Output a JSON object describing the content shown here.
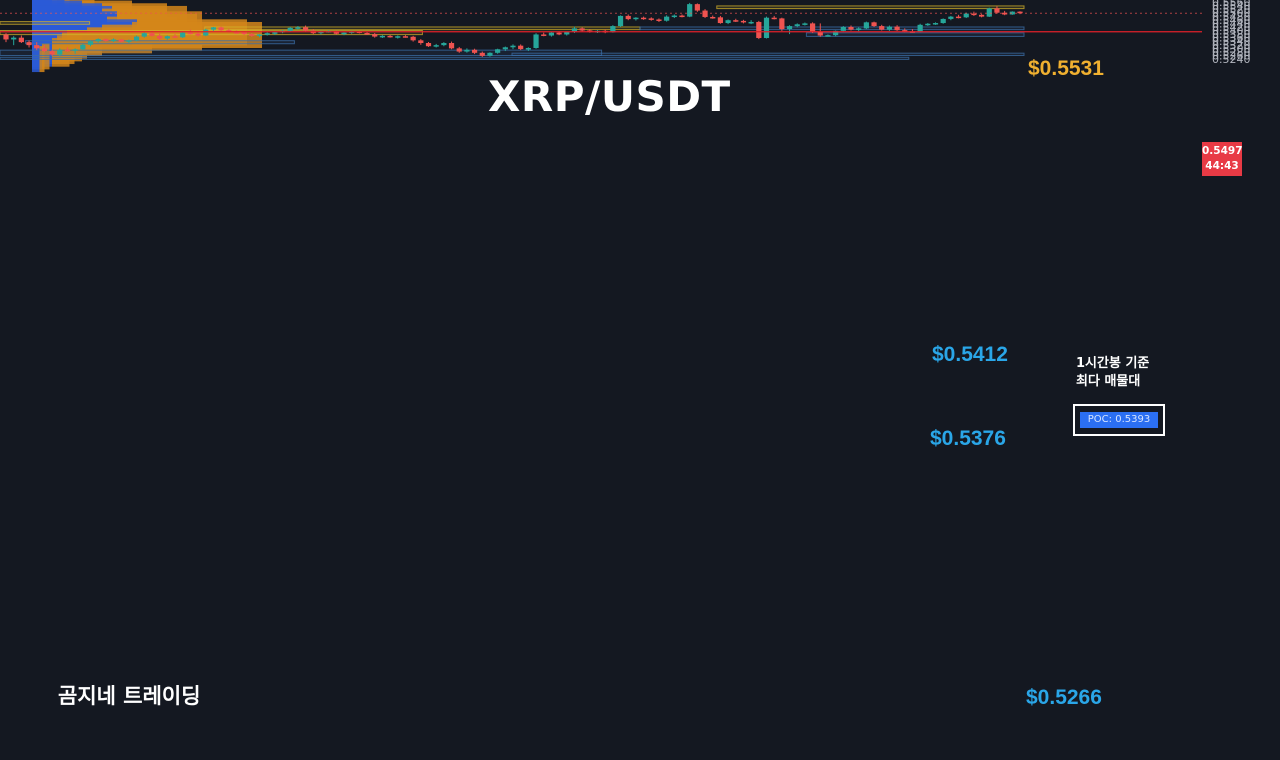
{
  "header": {
    "title": "XRP/USDT"
  },
  "branding": {
    "watermark": "곰지네 트레이딩"
  },
  "annotations": {
    "resistance_label": "$0.5531",
    "mid_label": "$0.5412",
    "support_label": "$0.5376",
    "low_label": "$0.5266",
    "poc_note_line1": "1시간봉 기준",
    "poc_note_line2": "최다 매물대",
    "poc_text": "POC: 0.5393"
  },
  "price_tag": {
    "price": "0.5497",
    "countdown": "44:43"
  },
  "colors": {
    "background": "#141821",
    "up_candle": "#26a69a",
    "down_candle": "#ef5350",
    "volume_profile_blue": "#2a5bd7",
    "volume_profile_orange": "#d4861a",
    "resistance_zone": "#d4b22a",
    "support_zone": "#3b6fa8",
    "poc_line": "#e0202a",
    "label_blue": "#2aa6e8",
    "label_orange": "#f0b030"
  },
  "chart_data": {
    "type": "candlestick",
    "symbol": "XRP/USDT",
    "timeframe": "1h",
    "ylim": [
      0.524,
      0.556
    ],
    "y_ticks": [
      "0.5560",
      "0.5540",
      "0.5520",
      "0.5500",
      "0.5480",
      "0.5460",
      "0.5440",
      "0.5420",
      "0.5400",
      "0.5380",
      "0.5360",
      "0.5340",
      "0.5320",
      "0.5300",
      "0.5280",
      "0.5260",
      "0.5240"
    ],
    "last_price": 0.5497,
    "poc": 0.5393,
    "candles_ohlc": [
      [
        0.5378,
        0.5385,
        0.5335,
        0.535
      ],
      [
        0.535,
        0.5368,
        0.5318,
        0.536
      ],
      [
        0.536,
        0.5372,
        0.533,
        0.5335
      ],
      [
        0.5335,
        0.5345,
        0.5305,
        0.5318
      ],
      [
        0.5318,
        0.5335,
        0.529,
        0.53
      ],
      [
        0.53,
        0.532,
        0.5278,
        0.5285
      ],
      [
        0.5285,
        0.5292,
        0.5258,
        0.5265
      ],
      [
        0.5265,
        0.53,
        0.5255,
        0.5292
      ],
      [
        0.5292,
        0.5306,
        0.528,
        0.5287
      ],
      [
        0.5287,
        0.53,
        0.527,
        0.5295
      ],
      [
        0.5295,
        0.5325,
        0.529,
        0.532
      ],
      [
        0.532,
        0.5345,
        0.5312,
        0.534
      ],
      [
        0.534,
        0.5356,
        0.5332,
        0.5352
      ],
      [
        0.5352,
        0.5356,
        0.5338,
        0.5342
      ],
      [
        0.5342,
        0.5356,
        0.5336,
        0.535
      ],
      [
        0.535,
        0.5352,
        0.5333,
        0.5337
      ],
      [
        0.5337,
        0.5349,
        0.533,
        0.5345
      ],
      [
        0.5345,
        0.5372,
        0.534,
        0.5366
      ],
      [
        0.5366,
        0.539,
        0.536,
        0.5385
      ],
      [
        0.5385,
        0.5398,
        0.5366,
        0.537
      ],
      [
        0.537,
        0.5384,
        0.5345,
        0.5355
      ],
      [
        0.5355,
        0.5372,
        0.5348,
        0.5368
      ],
      [
        0.5368,
        0.538,
        0.5358,
        0.5362
      ],
      [
        0.5362,
        0.5392,
        0.5358,
        0.5388
      ],
      [
        0.5388,
        0.5405,
        0.5378,
        0.5382
      ],
      [
        0.5382,
        0.5398,
        0.5365,
        0.5372
      ],
      [
        0.5372,
        0.541,
        0.5368,
        0.5405
      ],
      [
        0.5405,
        0.542,
        0.5398,
        0.5418
      ],
      [
        0.5418,
        0.5422,
        0.5398,
        0.5402
      ],
      [
        0.5402,
        0.5408,
        0.5388,
        0.5392
      ],
      [
        0.5392,
        0.54,
        0.5382,
        0.539
      ],
      [
        0.539,
        0.5396,
        0.5375,
        0.538
      ],
      [
        0.538,
        0.5386,
        0.5365,
        0.537
      ],
      [
        0.537,
        0.538,
        0.5362,
        0.5378
      ],
      [
        0.5378,
        0.539,
        0.5372,
        0.5385
      ],
      [
        0.5385,
        0.5395,
        0.5375,
        0.539
      ],
      [
        0.539,
        0.5402,
        0.5385,
        0.5398
      ],
      [
        0.5398,
        0.542,
        0.5392,
        0.5415
      ],
      [
        0.5415,
        0.5425,
        0.5405,
        0.5418
      ],
      [
        0.5418,
        0.5428,
        0.5395,
        0.54
      ],
      [
        0.54,
        0.5408,
        0.538,
        0.5385
      ],
      [
        0.5385,
        0.5398,
        0.5378,
        0.5395
      ],
      [
        0.5395,
        0.5402,
        0.5388,
        0.5397
      ],
      [
        0.5397,
        0.54,
        0.5378,
        0.5382
      ],
      [
        0.5382,
        0.539,
        0.5374,
        0.5388
      ],
      [
        0.5388,
        0.5398,
        0.5382,
        0.5395
      ],
      [
        0.5395,
        0.5398,
        0.5384,
        0.5386
      ],
      [
        0.5386,
        0.5392,
        0.5375,
        0.538
      ],
      [
        0.538,
        0.5386,
        0.536,
        0.5366
      ],
      [
        0.5366,
        0.5374,
        0.5358,
        0.537
      ],
      [
        0.537,
        0.5375,
        0.536,
        0.5364
      ],
      [
        0.5364,
        0.5372,
        0.5355,
        0.5368
      ],
      [
        0.5368,
        0.5374,
        0.536,
        0.5365
      ],
      [
        0.5365,
        0.537,
        0.5338,
        0.5345
      ],
      [
        0.5345,
        0.5352,
        0.532,
        0.533
      ],
      [
        0.533,
        0.5336,
        0.5308,
        0.5312
      ],
      [
        0.5312,
        0.5325,
        0.5305,
        0.5318
      ],
      [
        0.5318,
        0.5335,
        0.5312,
        0.533
      ],
      [
        0.533,
        0.5338,
        0.5295,
        0.53
      ],
      [
        0.53,
        0.5308,
        0.5275,
        0.5282
      ],
      [
        0.5282,
        0.53,
        0.5276,
        0.5292
      ],
      [
        0.5292,
        0.5298,
        0.5268,
        0.5275
      ],
      [
        0.5275,
        0.5282,
        0.5252,
        0.5258
      ],
      [
        0.5258,
        0.5278,
        0.5254,
        0.5275
      ],
      [
        0.5275,
        0.5298,
        0.527,
        0.5295
      ],
      [
        0.5295,
        0.531,
        0.5285,
        0.5306
      ],
      [
        0.5306,
        0.5322,
        0.5296,
        0.5315
      ],
      [
        0.5315,
        0.5322,
        0.529,
        0.5296
      ],
      [
        0.5296,
        0.5306,
        0.5285,
        0.5302
      ],
      [
        0.5302,
        0.5385,
        0.5298,
        0.5378
      ],
      [
        0.5378,
        0.5388,
        0.5368,
        0.5372
      ],
      [
        0.5372,
        0.5392,
        0.5366,
        0.5388
      ],
      [
        0.5388,
        0.5396,
        0.5374,
        0.5378
      ],
      [
        0.5378,
        0.5395,
        0.5372,
        0.5392
      ],
      [
        0.5392,
        0.5422,
        0.5386,
        0.5412
      ],
      [
        0.5412,
        0.5418,
        0.5395,
        0.54
      ],
      [
        0.54,
        0.5408,
        0.5388,
        0.5394
      ],
      [
        0.5394,
        0.5402,
        0.5386,
        0.5398
      ],
      [
        0.5398,
        0.5406,
        0.5385,
        0.539
      ],
      [
        0.539,
        0.543,
        0.5388,
        0.5425
      ],
      [
        0.5425,
        0.5485,
        0.542,
        0.5482
      ],
      [
        0.5482,
        0.549,
        0.5458,
        0.5464
      ],
      [
        0.5464,
        0.5475,
        0.5456,
        0.5472
      ],
      [
        0.5472,
        0.5478,
        0.546,
        0.5468
      ],
      [
        0.5468,
        0.5474,
        0.5455,
        0.5462
      ],
      [
        0.5462,
        0.5468,
        0.5448,
        0.5455
      ],
      [
        0.5455,
        0.5485,
        0.545,
        0.5478
      ],
      [
        0.5478,
        0.549,
        0.547,
        0.5484
      ],
      [
        0.5484,
        0.549,
        0.5474,
        0.5478
      ],
      [
        0.5478,
        0.5555,
        0.5475,
        0.5548
      ],
      [
        0.5548,
        0.5552,
        0.5505,
        0.5512
      ],
      [
        0.5512,
        0.552,
        0.547,
        0.5476
      ],
      [
        0.5476,
        0.5484,
        0.5466,
        0.5474
      ],
      [
        0.5474,
        0.5482,
        0.5438,
        0.5442
      ],
      [
        0.5442,
        0.5462,
        0.5436,
        0.5458
      ],
      [
        0.5458,
        0.5466,
        0.5448,
        0.5454
      ],
      [
        0.5454,
        0.546,
        0.544,
        0.5446
      ],
      [
        0.5446,
        0.5458,
        0.5436,
        0.5448
      ],
      [
        0.5448,
        0.5454,
        0.5352,
        0.5358
      ],
      [
        0.5358,
        0.5478,
        0.5355,
        0.5472
      ],
      [
        0.5472,
        0.5482,
        0.5462,
        0.5468
      ],
      [
        0.5468,
        0.5472,
        0.5398,
        0.5408
      ],
      [
        0.5408,
        0.543,
        0.538,
        0.5425
      ],
      [
        0.5425,
        0.544,
        0.5418,
        0.5435
      ],
      [
        0.5435,
        0.5445,
        0.5428,
        0.544
      ],
      [
        0.544,
        0.5446,
        0.5386,
        0.5392
      ],
      [
        0.5392,
        0.544,
        0.5365,
        0.5372
      ],
      [
        0.5372,
        0.5378,
        0.5368,
        0.5374
      ],
      [
        0.5374,
        0.54,
        0.5368,
        0.5398
      ],
      [
        0.5398,
        0.5425,
        0.5395,
        0.542
      ],
      [
        0.542,
        0.5428,
        0.54,
        0.5405
      ],
      [
        0.5405,
        0.5418,
        0.5396,
        0.5412
      ],
      [
        0.5412,
        0.545,
        0.5408,
        0.5446
      ],
      [
        0.5446,
        0.545,
        0.542,
        0.5425
      ],
      [
        0.5425,
        0.5432,
        0.54,
        0.5405
      ],
      [
        0.5405,
        0.5428,
        0.5398,
        0.5422
      ],
      [
        0.5422,
        0.543,
        0.5398,
        0.5402
      ],
      [
        0.5402,
        0.5412,
        0.539,
        0.5396
      ],
      [
        0.5396,
        0.5408,
        0.5388,
        0.5392
      ],
      [
        0.5392,
        0.5438,
        0.539,
        0.5432
      ],
      [
        0.5432,
        0.5442,
        0.5426,
        0.5438
      ],
      [
        0.5438,
        0.5446,
        0.5432,
        0.5442
      ],
      [
        0.5442,
        0.5468,
        0.5438,
        0.5465
      ],
      [
        0.5465,
        0.5482,
        0.5458,
        0.5478
      ],
      [
        0.5478,
        0.5488,
        0.5468,
        0.5474
      ],
      [
        0.5474,
        0.55,
        0.547,
        0.5495
      ],
      [
        0.5495,
        0.5506,
        0.5482,
        0.5488
      ],
      [
        0.5488,
        0.5492,
        0.5474,
        0.5478
      ],
      [
        0.5478,
        0.5528,
        0.5476,
        0.5524
      ],
      [
        0.5524,
        0.5536,
        0.5494,
        0.55
      ],
      [
        0.55,
        0.551,
        0.5486,
        0.549
      ],
      [
        0.549,
        0.5508,
        0.5488,
        0.5506
      ],
      [
        0.5506,
        0.5508,
        0.5492,
        0.5497
      ]
    ],
    "volume_profile": [
      [
        0.5555,
        3,
        0
      ],
      [
        0.554,
        5,
        5
      ],
      [
        0.5525,
        8,
        7
      ],
      [
        0.551,
        13,
        12
      ],
      [
        0.5495,
        20,
        20
      ],
      [
        0.548,
        28,
        26
      ],
      [
        0.5465,
        32,
        30
      ],
      [
        0.545,
        28,
        26
      ],
      [
        0.5435,
        34,
        34
      ],
      [
        0.542,
        34,
        32
      ],
      [
        0.5405,
        30,
        28
      ],
      [
        0.539,
        42,
        44
      ],
      [
        0.5375,
        40,
        52
      ],
      [
        0.536,
        28,
        40
      ],
      [
        0.5345,
        22,
        26
      ],
      [
        0.533,
        14,
        14
      ],
      [
        0.5315,
        12,
        10
      ],
      [
        0.53,
        10,
        10
      ],
      [
        0.5285,
        8,
        9
      ],
      [
        0.527,
        8,
        7
      ],
      [
        0.5255,
        4,
        3
      ],
      [
        0.524,
        3,
        2
      ]
    ],
    "zones": [
      {
        "kind": "resistance",
        "top": 0.5538,
        "bottom": 0.5523,
        "from": 0.56,
        "to": 0.8
      },
      {
        "kind": "resistance",
        "top": 0.542,
        "bottom": 0.5405,
        "from": 0.16,
        "to": 0.5
      },
      {
        "kind": "resistance",
        "top": 0.54,
        "bottom": 0.5377,
        "from": 0.0,
        "to": 0.33
      },
      {
        "kind": "support",
        "top": 0.542,
        "bottom": 0.5405,
        "from": 0.5,
        "to": 0.8
      },
      {
        "kind": "support",
        "top": 0.5387,
        "bottom": 0.5367,
        "from": 0.63,
        "to": 0.8
      },
      {
        "kind": "support",
        "top": 0.5343,
        "bottom": 0.5326,
        "from": 0.02,
        "to": 0.23
      },
      {
        "kind": "support",
        "top": 0.529,
        "bottom": 0.526,
        "from": 0.0,
        "to": 0.47
      },
      {
        "kind": "support",
        "top": 0.5273,
        "bottom": 0.526,
        "from": 0.4,
        "to": 0.8
      },
      {
        "kind": "support",
        "top": 0.525,
        "bottom": 0.5238,
        "from": 0.0,
        "to": 0.71
      },
      {
        "kind": "resistance",
        "top": 0.545,
        "bottom": 0.5435,
        "from": 0.0,
        "to": 0.07
      }
    ]
  }
}
